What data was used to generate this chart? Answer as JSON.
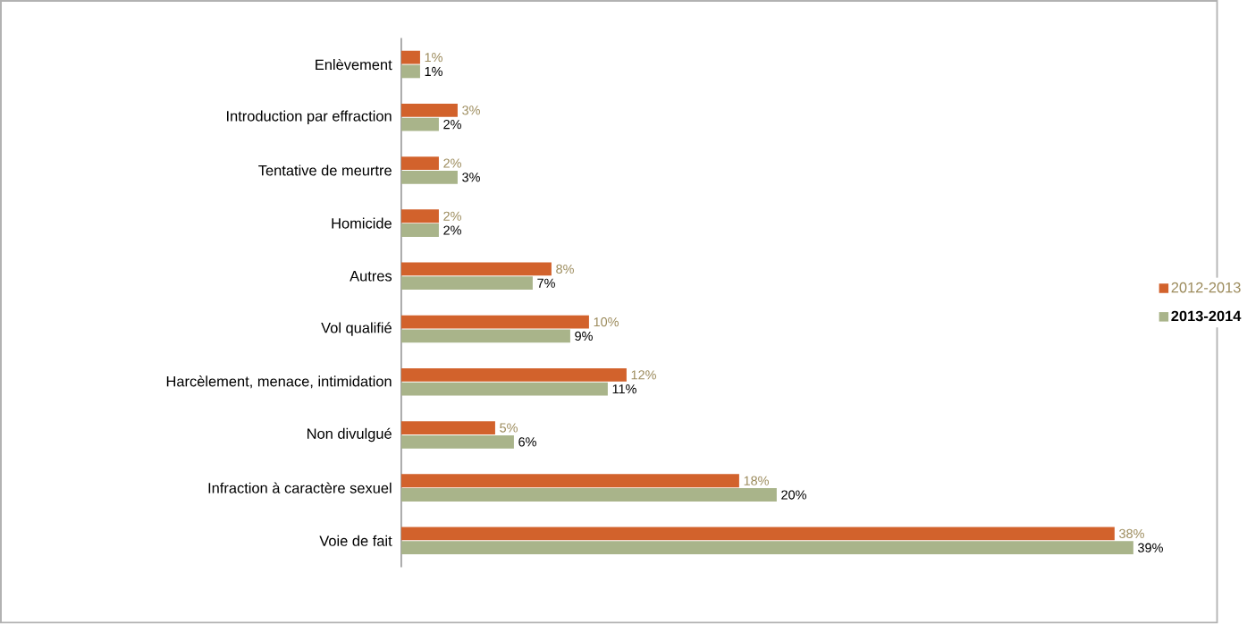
{
  "chart_data": {
    "type": "bar",
    "orientation": "horizontal",
    "categories": [
      "Enlèvement",
      "Introduction par effraction",
      "Tentative de meurtre",
      "Homicide",
      "Autres",
      "Vol qualifié",
      "Harcèlement, menace, intimidation",
      "Non divulgué",
      "Infraction à caractère sexuel",
      "Voie de fait"
    ],
    "series": [
      {
        "name": "2012-2013",
        "color": "#d2622c",
        "values": [
          1,
          3,
          2,
          2,
          8,
          10,
          12,
          5,
          18,
          38
        ],
        "value_labels": [
          "1%",
          "3%",
          "2%",
          "2%",
          "8%",
          "10%",
          "12%",
          "5%",
          "18%",
          "38%"
        ]
      },
      {
        "name": "2013-2014",
        "color": "#a9b48a",
        "values": [
          1,
          2,
          3,
          2,
          7,
          9,
          11,
          6,
          20,
          39
        ],
        "value_labels": [
          "1%",
          "2%",
          "3%",
          "2%",
          "7%",
          "9%",
          "11%",
          "6%",
          "20%",
          "39%"
        ]
      }
    ],
    "xlim": [
      0,
      39
    ],
    "legend": "right",
    "tick_labels": "y"
  }
}
